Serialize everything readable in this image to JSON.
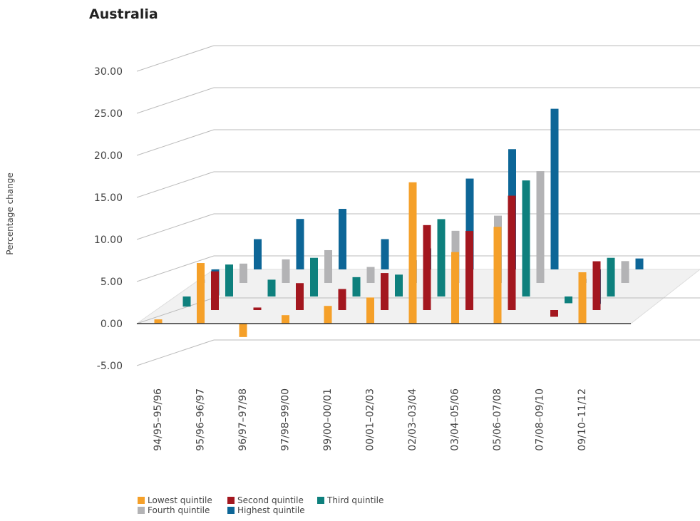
{
  "chart_data": {
    "type": "bar3d",
    "title": "Australia",
    "y_label": "Percentage change",
    "categories": [
      "94/95–95/96",
      "95/96–96/97",
      "96/97–97/98",
      "97/98–99/00",
      "99/00–00/01",
      "00/01–02/03",
      "02/03–03/04",
      "03/04–05/06",
      "05/06–07/08",
      "07/08–09/10",
      "09/10–11/12"
    ],
    "series": [
      {
        "name": "Lowest quintile",
        "color": "#f5a029",
        "values": [
          0.5,
          7.2,
          -1.6,
          1.0,
          2.1,
          3.1,
          16.8,
          8.5,
          11.5,
          0,
          6.1
        ]
      },
      {
        "name": "Second quintile",
        "color": "#a3171f",
        "values": [
          0,
          4.6,
          0.3,
          3.2,
          2.5,
          4.4,
          10.1,
          9.4,
          13.6,
          -0.8,
          5.8
        ]
      },
      {
        "name": "Third quintile",
        "color": "#0e807d",
        "values": [
          -1.2,
          3.8,
          2.0,
          4.6,
          2.3,
          2.6,
          9.2,
          0,
          13.8,
          -0.8,
          4.6
        ]
      },
      {
        "name": "Fourth quintile",
        "color": "#b3b3b5",
        "values": [
          0.4,
          2.3,
          2.8,
          3.9,
          1.9,
          2.7,
          6.2,
          8.0,
          13.3,
          0.5,
          2.6
        ]
      },
      {
        "name": "Highest quintile",
        "color": "#0d6697",
        "values": [
          -3.1,
          3.6,
          6.0,
          7.2,
          3.6,
          2.5,
          10.8,
          14.3,
          19.1,
          -4.1,
          1.3
        ]
      }
    ],
    "ylim": [
      -5,
      30
    ],
    "yticks": [
      {
        "value": -5,
        "label": "-5.00"
      },
      {
        "value": 0,
        "label": "0.00"
      },
      {
        "value": 5,
        "label": "5.00"
      },
      {
        "value": 10,
        "label": "10.00"
      },
      {
        "value": 15,
        "label": "15.00"
      },
      {
        "value": 20,
        "label": "20.00"
      },
      {
        "value": 25,
        "label": "25.00"
      },
      {
        "value": 30,
        "label": "30.00"
      }
    ],
    "grid": true
  }
}
